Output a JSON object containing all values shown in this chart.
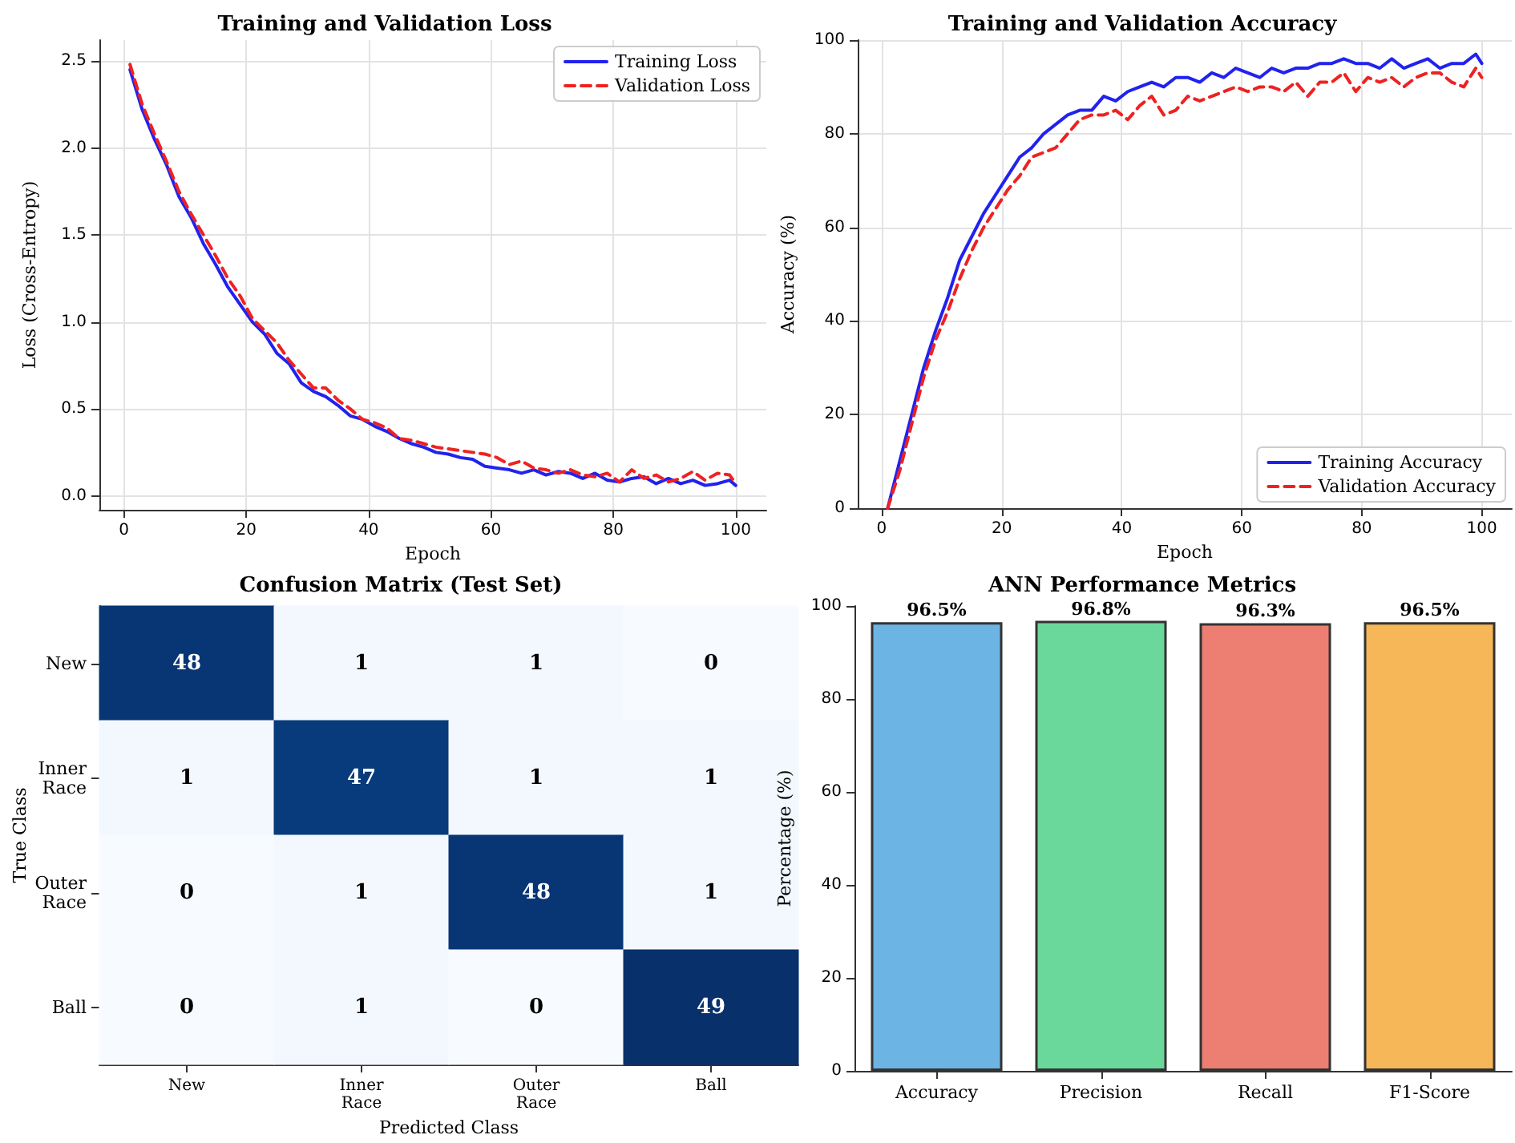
{
  "chart_data": [
    {
      "type": "line",
      "title": "Training and Validation Loss",
      "xlabel": "Epoch",
      "ylabel": "Loss (Cross-Entropy)",
      "x": [
        1,
        3,
        5,
        7,
        9,
        11,
        13,
        15,
        17,
        19,
        21,
        23,
        25,
        27,
        29,
        31,
        33,
        35,
        37,
        39,
        41,
        43,
        45,
        47,
        49,
        51,
        53,
        55,
        57,
        59,
        61,
        63,
        65,
        67,
        69,
        71,
        73,
        75,
        77,
        79,
        81,
        83,
        85,
        87,
        89,
        91,
        93,
        95,
        97,
        99,
        100
      ],
      "series": [
        {
          "name": "Training Loss",
          "color": "#2222ee",
          "line_style": "solid",
          "values": [
            2.45,
            2.22,
            2.05,
            1.9,
            1.72,
            1.6,
            1.45,
            1.33,
            1.2,
            1.1,
            1.0,
            0.93,
            0.82,
            0.76,
            0.65,
            0.6,
            0.57,
            0.52,
            0.46,
            0.44,
            0.4,
            0.37,
            0.33,
            0.3,
            0.28,
            0.25,
            0.24,
            0.22,
            0.21,
            0.17,
            0.16,
            0.15,
            0.13,
            0.15,
            0.12,
            0.14,
            0.13,
            0.1,
            0.13,
            0.09,
            0.08,
            0.1,
            0.11,
            0.07,
            0.1,
            0.07,
            0.09,
            0.06,
            0.07,
            0.09,
            0.06
          ]
        },
        {
          "name": "Validation Loss",
          "color": "#ee2222",
          "line_style": "dashed",
          "values": [
            2.48,
            2.25,
            2.08,
            1.92,
            1.75,
            1.62,
            1.5,
            1.38,
            1.25,
            1.15,
            1.02,
            0.95,
            0.88,
            0.78,
            0.7,
            0.62,
            0.62,
            0.55,
            0.5,
            0.44,
            0.42,
            0.39,
            0.33,
            0.32,
            0.3,
            0.28,
            0.27,
            0.26,
            0.25,
            0.24,
            0.22,
            0.18,
            0.2,
            0.16,
            0.15,
            0.13,
            0.15,
            0.12,
            0.11,
            0.13,
            0.08,
            0.15,
            0.1,
            0.12,
            0.08,
            0.1,
            0.14,
            0.09,
            0.13,
            0.12,
            0.07
          ]
        }
      ],
      "xlim": [
        -4,
        105
      ],
      "xticks": [
        0,
        20,
        40,
        60,
        80,
        100
      ],
      "ylim": [
        -0.08,
        2.62
      ],
      "yticks": [
        {
          "value": 0,
          "label": "0.0"
        },
        {
          "value": 0.5,
          "label": "0.5"
        },
        {
          "value": 1,
          "label": "1.0"
        },
        {
          "value": 1.5,
          "label": "1.5"
        },
        {
          "value": 2,
          "label": "2.0"
        },
        {
          "value": 2.5,
          "label": "2.5"
        }
      ],
      "grid": true,
      "legend": "top right",
      "marker": "none"
    },
    {
      "type": "line",
      "title": "Training and Validation Accuracy",
      "xlabel": "Epoch",
      "ylabel": "Accuracy (%)",
      "x": [
        1,
        3,
        5,
        7,
        9,
        11,
        13,
        15,
        17,
        19,
        21,
        23,
        25,
        27,
        29,
        31,
        33,
        35,
        37,
        39,
        41,
        43,
        45,
        47,
        49,
        51,
        53,
        55,
        57,
        59,
        61,
        63,
        65,
        67,
        69,
        71,
        73,
        75,
        77,
        79,
        81,
        83,
        85,
        87,
        89,
        91,
        93,
        95,
        97,
        99,
        100
      ],
      "series": [
        {
          "name": "Training Accuracy",
          "color": "#2222ee",
          "line_style": "solid",
          "values": [
            0,
            10,
            20,
            30,
            38,
            45,
            53,
            58,
            63,
            67,
            71,
            75,
            77,
            80,
            82,
            84,
            85,
            85,
            88,
            87,
            89,
            90,
            91,
            90,
            92,
            92,
            91,
            93,
            92,
            94,
            93,
            92,
            94,
            93,
            94,
            94,
            95,
            95,
            96,
            95,
            95,
            94,
            96,
            94,
            95,
            96,
            94,
            95,
            95,
            97,
            95
          ]
        },
        {
          "name": "Validation Accuracy",
          "color": "#ee2222",
          "line_style": "dashed",
          "values": [
            0,
            8,
            18,
            28,
            36,
            42,
            49,
            55,
            60,
            64,
            68,
            71,
            75,
            76,
            77,
            80,
            83,
            84,
            84,
            85,
            83,
            86,
            88,
            84,
            85,
            88,
            87,
            88,
            89,
            90,
            89,
            90,
            90,
            89,
            91,
            88,
            91,
            91,
            93,
            89,
            92,
            91,
            92,
            90,
            92,
            93,
            93,
            91,
            90,
            94,
            92
          ]
        }
      ],
      "xlim": [
        -4,
        105
      ],
      "xticks": [
        0,
        20,
        40,
        60,
        80,
        100
      ],
      "ylim": [
        0,
        100
      ],
      "yticks": [
        0,
        20,
        40,
        60,
        80,
        100
      ],
      "grid": true,
      "legend": "bottom right",
      "marker": "none"
    },
    {
      "type": "heatmap",
      "title": "Confusion Matrix (Test Set)",
      "xlabel": "Predicted Class",
      "ylabel": "True Class",
      "categories": [
        "New",
        "Inner Race",
        "Outer Race",
        "Ball"
      ],
      "y_categories": [
        "New",
        "Inner Race",
        "Outer Race",
        "Ball"
      ],
      "cells": [
        [
          48,
          1,
          1,
          0
        ],
        [
          1,
          47,
          1,
          1
        ],
        [
          0,
          1,
          48,
          1
        ],
        [
          0,
          1,
          0,
          49
        ]
      ],
      "data_labels": true
    },
    {
      "type": "bar",
      "title": "ANN Performance Metrics",
      "ylabel": "Percentage (%)",
      "categories": [
        "Accuracy",
        "Precision",
        "Recall",
        "F1-Score"
      ],
      "values": [
        96.5,
        96.8,
        96.3,
        96.5
      ],
      "colors": [
        "#6cb4e4",
        "#6ad89a",
        "#ec7f72",
        "#f5b757"
      ],
      "value_labels": [
        "96.5%",
        "96.8%",
        "96.3%",
        "96.5%"
      ],
      "ylim": [
        0,
        100
      ],
      "yticks": [
        0,
        20,
        40,
        60,
        80,
        100
      ],
      "grid": false
    }
  ]
}
